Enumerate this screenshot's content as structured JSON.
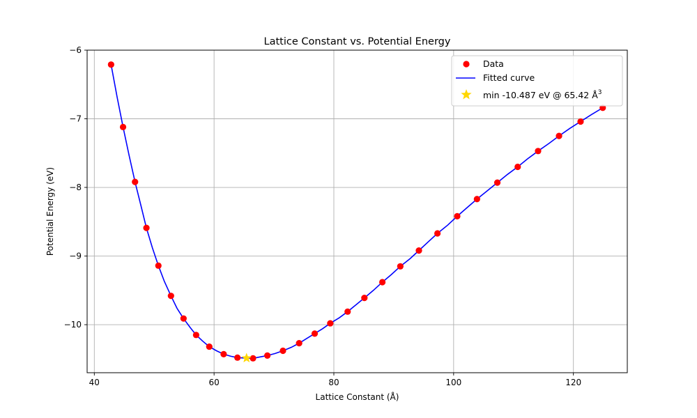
{
  "chart_data": {
    "type": "scatter",
    "title": "Lattice Constant vs. Potential Energy",
    "xlabel": "Lattice Constant (Å)",
    "ylabel": "Potential Energy (eV)",
    "xlim": [
      38.8,
      129
    ],
    "ylim": [
      -10.7,
      -6.0
    ],
    "xticks": [
      40,
      60,
      80,
      100,
      120
    ],
    "xtick_labels": [
      "40",
      "60",
      "80",
      "100",
      "120"
    ],
    "yticks": [
      -6,
      -7,
      -8,
      -9,
      -10
    ],
    "ytick_labels": [
      "−6",
      "−7",
      "−8",
      "−9",
      "−10"
    ],
    "grid": true,
    "legend_position": "top-right",
    "series": [
      {
        "name": "Data",
        "kind": "scatter",
        "color": "#ff0000",
        "x": [
          42.8,
          44.8,
          46.8,
          48.7,
          50.7,
          52.8,
          54.9,
          57.0,
          59.2,
          61.6,
          63.9,
          66.5,
          68.9,
          71.5,
          74.2,
          76.8,
          79.4,
          82.3,
          85.1,
          88.1,
          91.1,
          94.2,
          97.3,
          100.6,
          103.9,
          107.3,
          110.7,
          114.1,
          117.6,
          121.2,
          124.9
        ],
        "y": [
          -6.21,
          -7.12,
          -7.92,
          -8.59,
          -9.14,
          -9.58,
          -9.91,
          -10.15,
          -10.32,
          -10.43,
          -10.48,
          -10.49,
          -10.45,
          -10.38,
          -10.27,
          -10.13,
          -9.98,
          -9.81,
          -9.61,
          -9.38,
          -9.15,
          -8.92,
          -8.67,
          -8.42,
          -8.17,
          -7.93,
          -7.7,
          -7.47,
          -7.25,
          -7.04,
          -6.84
        ]
      },
      {
        "name": "Fitted curve",
        "kind": "line",
        "color": "#0000ff",
        "x": [
          42.8,
          43.8,
          44.8,
          45.8,
          46.8,
          47.8,
          48.7,
          49.7,
          50.7,
          51.7,
          52.8,
          53.8,
          54.9,
          56.0,
          57.0,
          58.1,
          59.2,
          60.4,
          61.6,
          62.8,
          63.9,
          65.4,
          66.5,
          67.7,
          68.9,
          70.2,
          71.5,
          72.9,
          74.2,
          75.5,
          76.8,
          78.1,
          79.4,
          80.9,
          82.3,
          83.7,
          85.1,
          86.6,
          88.1,
          89.6,
          91.1,
          92.7,
          94.2,
          95.8,
          97.3,
          99.0,
          100.6,
          102.3,
          103.9,
          105.6,
          107.3,
          109.0,
          110.7,
          112.4,
          114.1,
          115.9,
          117.6,
          119.4,
          121.2,
          123.0,
          124.9
        ],
        "y": [
          -6.21,
          -6.68,
          -7.12,
          -7.53,
          -7.92,
          -8.27,
          -8.59,
          -8.88,
          -9.14,
          -9.37,
          -9.58,
          -9.76,
          -9.91,
          -10.04,
          -10.15,
          -10.24,
          -10.32,
          -10.38,
          -10.43,
          -10.46,
          -10.48,
          -10.487,
          -10.49,
          -10.47,
          -10.45,
          -10.42,
          -10.38,
          -10.33,
          -10.27,
          -10.2,
          -10.13,
          -10.06,
          -9.98,
          -9.9,
          -9.81,
          -9.71,
          -9.61,
          -9.5,
          -9.38,
          -9.27,
          -9.15,
          -9.04,
          -8.92,
          -8.79,
          -8.67,
          -8.55,
          -8.42,
          -8.29,
          -8.17,
          -8.05,
          -7.93,
          -7.81,
          -7.7,
          -7.58,
          -7.47,
          -7.36,
          -7.25,
          -7.14,
          -7.04,
          -6.94,
          -6.84
        ]
      },
      {
        "name": "min -10.487 eV @  65.42 Å",
        "name_superscript": "3",
        "kind": "marker-star",
        "color": "#ffd700",
        "x": [
          65.42
        ],
        "y": [
          -10.487
        ]
      }
    ]
  }
}
